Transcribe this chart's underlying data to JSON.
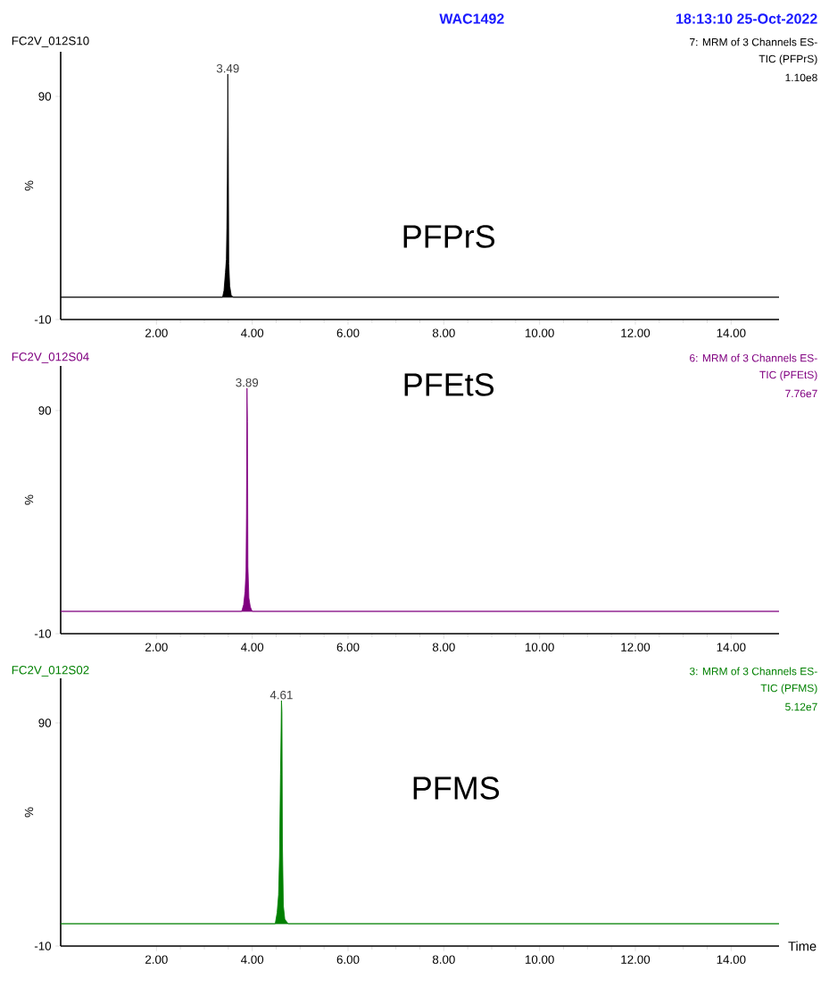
{
  "chart_data": [
    {
      "type": "area",
      "title": "PFPrS",
      "subtitle": "FC2V_012S10",
      "ylabel": "%",
      "annotations": [
        {
          "text": "3.49",
          "x": 3.49,
          "y": 100
        },
        "WAC1492",
        "18:13:10  25-Oct-2022",
        "7: MRM of 3 Channels ES-",
        "TIC (PFPrS)",
        "1.10e8"
      ],
      "series": [
        {
          "color": "#000000",
          "x": [
            0,
            3.38,
            3.41,
            3.44,
            3.46,
            3.47,
            3.48,
            3.49,
            3.5,
            3.51,
            3.53,
            3.56,
            3.6,
            15
          ],
          "values": [
            0,
            0,
            3,
            11,
            17,
            31,
            52,
            100,
            67,
            15,
            5,
            1,
            0,
            0
          ]
        }
      ],
      "xlim": [
        0,
        15
      ],
      "ylim": [
        -10,
        110
      ],
      "xticks": [
        {
          "value": 2,
          "label": "2.00"
        },
        {
          "value": 4,
          "label": "4.00"
        },
        {
          "value": 6,
          "label": "6.00"
        },
        {
          "value": 8,
          "label": "8.00"
        },
        {
          "value": 10,
          "label": "10.00"
        },
        {
          "value": 12,
          "label": "12.00"
        },
        {
          "value": 14,
          "label": "14.00"
        }
      ],
      "yticks": [
        -10,
        90
      ]
    },
    {
      "type": "area",
      "title": "PFEtS",
      "subtitle": "FC2V_012S04",
      "ylabel": "%",
      "annotations": [
        {
          "text": "3.89",
          "x": 3.89,
          "y": 100
        },
        "6: MRM of 3 Channels ES-",
        "TIC (PFEtS)",
        "7.76e7"
      ],
      "series": [
        {
          "color": "#800080",
          "x": [
            0,
            3.78,
            3.82,
            3.85,
            3.87,
            3.88,
            3.89,
            3.9,
            3.91,
            3.93,
            3.96,
            4.0,
            15
          ],
          "values": [
            0,
            0,
            3,
            9,
            18,
            44,
            100,
            85,
            20,
            6,
            2,
            0,
            0
          ]
        }
      ],
      "xlim": [
        0,
        15
      ],
      "ylim": [
        -10,
        110
      ],
      "xticks": [
        {
          "value": 2,
          "label": "2.00"
        },
        {
          "value": 4,
          "label": "4.00"
        },
        {
          "value": 6,
          "label": "6.00"
        },
        {
          "value": 8,
          "label": "8.00"
        },
        {
          "value": 10,
          "label": "10.00"
        },
        {
          "value": 12,
          "label": "12.00"
        },
        {
          "value": 14,
          "label": "14.00"
        }
      ],
      "yticks": [
        -10,
        90
      ]
    },
    {
      "type": "area",
      "title": "PFMS",
      "subtitle": "FC2V_012S02",
      "ylabel": "%",
      "xlabel": "Time",
      "annotations": [
        {
          "text": "4.61",
          "x": 4.61,
          "y": 100
        },
        "3: MRM of 3 Channels ES-",
        "TIC (PFMS)",
        "5.12e7"
      ],
      "series": [
        {
          "color": "#008000",
          "x": [
            0,
            4.48,
            4.52,
            4.55,
            4.57,
            4.59,
            4.6,
            4.61,
            4.62,
            4.63,
            4.65,
            4.68,
            4.75,
            15
          ],
          "values": [
            0,
            0,
            5,
            13,
            30,
            67,
            82,
            100,
            95,
            36,
            8,
            2,
            0,
            0
          ]
        }
      ],
      "xlim": [
        0,
        15
      ],
      "ylim": [
        -10,
        110
      ],
      "xticks": [
        {
          "value": 2,
          "label": "2.00"
        },
        {
          "value": 4,
          "label": "4.00"
        },
        {
          "value": 6,
          "label": "6.00"
        },
        {
          "value": 8,
          "label": "8.00"
        },
        {
          "value": 10,
          "label": "10.00"
        },
        {
          "value": 12,
          "label": "12.00"
        },
        {
          "value": 14,
          "label": "14.00"
        }
      ],
      "yticks": [
        -10,
        90
      ]
    }
  ]
}
